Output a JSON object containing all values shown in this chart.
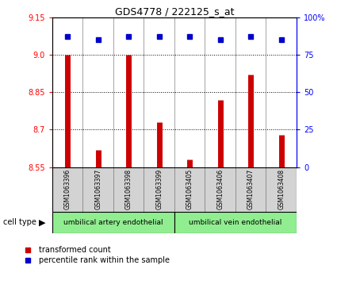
{
  "title": "GDS4778 / 222125_s_at",
  "samples": [
    "GSM1063396",
    "GSM1063397",
    "GSM1063398",
    "GSM1063399",
    "GSM1063405",
    "GSM1063406",
    "GSM1063407",
    "GSM1063408"
  ],
  "red_values": [
    9.0,
    8.62,
    9.0,
    8.73,
    8.58,
    8.82,
    8.92,
    8.68
  ],
  "blue_values": [
    87,
    85,
    87,
    87,
    87,
    85,
    87,
    85
  ],
  "ylim_left": [
    8.55,
    9.15
  ],
  "ylim_right": [
    0,
    100
  ],
  "yticks_left": [
    8.55,
    8.7,
    8.85,
    9.0,
    9.15
  ],
  "yticks_right": [
    0,
    25,
    50,
    75,
    100
  ],
  "cell_type_groups": [
    {
      "label": "umbilical artery endothelial",
      "start": 0,
      "end": 3
    },
    {
      "label": "umbilical vein endothelial",
      "start": 4,
      "end": 7
    }
  ],
  "bar_color": "#CC0000",
  "dot_color": "#0000CC",
  "plot_bg": "#FFFFFF",
  "gray_bg": "#D3D3D3",
  "green_bg": "#90EE90",
  "legend_red_label": "transformed count",
  "legend_blue_label": "percentile rank within the sample",
  "cell_type_label": "cell type"
}
